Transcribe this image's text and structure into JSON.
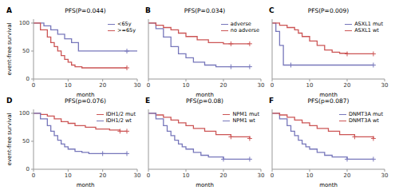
{
  "chart_data": [
    {
      "type": "step",
      "panel_label": "A",
      "title": "PFS(P=0.044)",
      "xlabel": "month",
      "ylabel": "event-free survival",
      "xlim": [
        0,
        30
      ],
      "ylim": [
        0,
        107
      ],
      "xticks": [
        0,
        10,
        20,
        30
      ],
      "yticks": [
        0,
        50,
        100
      ],
      "legend": "upper right",
      "series": [
        {
          "name": "<65y",
          "color": "#7777bb",
          "x": [
            0,
            3,
            5,
            7,
            9,
            11,
            13,
            15,
            27,
            30
          ],
          "values": [
            100,
            95,
            88,
            80,
            72,
            65,
            50,
            50,
            50,
            50
          ],
          "censor_x": [
            27
          ],
          "censor_values": [
            50
          ]
        },
        {
          "name": ">=65y",
          "color": "#cc5555",
          "x": [
            0,
            2,
            4,
            5,
            6,
            7,
            8,
            9,
            10,
            11,
            12,
            14,
            27
          ],
          "values": [
            100,
            88,
            75,
            65,
            58,
            50,
            42,
            35,
            30,
            25,
            22,
            20,
            20
          ],
          "censor_x": [
            27
          ],
          "censor_values": [
            20
          ]
        }
      ]
    },
    {
      "type": "step",
      "panel_label": "B",
      "title": "PFS(P=0.034)",
      "xlabel": "month",
      "xlim": [
        0,
        30
      ],
      "ylim": [
        0,
        107
      ],
      "xticks": [
        0,
        10,
        20,
        30
      ],
      "yticks": [
        0,
        50,
        100
      ],
      "legend": "upper right",
      "tick_labels": "x",
      "series": [
        {
          "name": "adverse",
          "color": "#7777bb",
          "x": [
            0,
            2,
            4,
            6,
            8,
            10,
            12,
            15,
            18,
            22,
            27
          ],
          "values": [
            100,
            90,
            75,
            58,
            45,
            38,
            30,
            25,
            22,
            22,
            22
          ],
          "censor_x": [
            22,
            27
          ],
          "censor_values": [
            22,
            22
          ]
        },
        {
          "name": "no adverse",
          "color": "#cc5555",
          "x": [
            0,
            2,
            4,
            6,
            8,
            10,
            13,
            16,
            20,
            22,
            27
          ],
          "values": [
            100,
            96,
            92,
            88,
            82,
            76,
            70,
            65,
            63,
            63,
            63
          ],
          "censor_x": [
            22,
            27
          ],
          "censor_values": [
            63,
            63
          ]
        }
      ]
    },
    {
      "type": "step",
      "panel_label": "C",
      "title": "PFS(P=0.009)",
      "xlabel": "month",
      "xlim": [
        0,
        30
      ],
      "ylim": [
        0,
        107
      ],
      "xticks": [
        0,
        10,
        20,
        30
      ],
      "yticks": [
        0,
        50,
        100
      ],
      "legend": "upper right",
      "tick_labels": "x",
      "series": [
        {
          "name": "ASXL1 mut",
          "color": "#7777bb",
          "x": [
            0,
            1,
            2,
            3,
            4,
            5,
            27
          ],
          "values": [
            100,
            85,
            60,
            25,
            25,
            25,
            25
          ],
          "censor_x": [
            5,
            27
          ],
          "censor_values": [
            25,
            25
          ]
        },
        {
          "name": "ASXL1 wt",
          "color": "#cc5555",
          "x": [
            0,
            2,
            4,
            6,
            7,
            8,
            10,
            12,
            14,
            16,
            18,
            20,
            27
          ],
          "values": [
            100,
            96,
            92,
            88,
            82,
            76,
            68,
            60,
            52,
            48,
            46,
            45,
            45
          ],
          "censor_x": [
            20,
            27
          ],
          "censor_values": [
            45,
            45
          ]
        }
      ]
    },
    {
      "type": "step",
      "panel_label": "D",
      "title": "PFS(p=0.076)",
      "xlabel": "month",
      "ylabel": "event-free survival",
      "xlim": [
        0,
        30
      ],
      "ylim": [
        0,
        107
      ],
      "xticks": [
        0,
        10,
        20,
        30
      ],
      "yticks": [
        0,
        50,
        100
      ],
      "legend": "upper right",
      "series": [
        {
          "name": "IDH1/2 mut",
          "color": "#cc5555",
          "x": [
            0,
            2,
            4,
            6,
            8,
            10,
            12,
            15,
            18,
            22,
            25,
            27
          ],
          "values": [
            100,
            98,
            95,
            90,
            85,
            82,
            78,
            75,
            72,
            70,
            68,
            68
          ],
          "censor_x": [
            25,
            27
          ],
          "censor_values": [
            68,
            68
          ]
        },
        {
          "name": "IDH1/2 wt",
          "color": "#7777bb",
          "x": [
            0,
            2,
            4,
            5,
            6,
            7,
            8,
            9,
            10,
            12,
            14,
            16,
            20,
            27
          ],
          "values": [
            100,
            90,
            78,
            68,
            60,
            52,
            45,
            40,
            36,
            32,
            30,
            28,
            28,
            28
          ],
          "censor_x": [
            20,
            27
          ],
          "censor_values": [
            28,
            28
          ]
        }
      ]
    },
    {
      "type": "step",
      "panel_label": "E",
      "title": "PFS(p=0.08)",
      "xlabel": "month",
      "xlim": [
        0,
        30
      ],
      "ylim": [
        0,
        107
      ],
      "xticks": [
        0,
        10,
        20,
        30
      ],
      "yticks": [
        0,
        50,
        100
      ],
      "legend": "upper right",
      "tick_labels": "x",
      "series": [
        {
          "name": "NPM1 mut",
          "color": "#cc5555",
          "x": [
            0,
            2,
            4,
            6,
            8,
            10,
            12,
            15,
            18,
            22,
            27
          ],
          "values": [
            100,
            97,
            93,
            88,
            83,
            78,
            73,
            68,
            62,
            58,
            55
          ],
          "censor_x": [
            22,
            27
          ],
          "censor_values": [
            58,
            55
          ]
        },
        {
          "name": "NPM1 wt",
          "color": "#7777bb",
          "x": [
            0,
            2,
            4,
            5,
            6,
            7,
            8,
            9,
            10,
            12,
            14,
            16,
            20,
            27
          ],
          "values": [
            100,
            90,
            78,
            68,
            60,
            52,
            45,
            40,
            36,
            30,
            25,
            22,
            18,
            18
          ],
          "censor_x": [
            20,
            27
          ],
          "censor_values": [
            18,
            18
          ]
        }
      ]
    },
    {
      "type": "step",
      "panel_label": "F",
      "title": "PFS(p=0.087)",
      "xlabel": "month",
      "xlim": [
        0,
        30
      ],
      "ylim": [
        0,
        107
      ],
      "xticks": [
        0,
        10,
        20,
        30
      ],
      "yticks": [
        0,
        50,
        100
      ],
      "legend": "upper right",
      "tick_labels": "x",
      "series": [
        {
          "name": "DNMT3A mut",
          "color": "#7777bb",
          "x": [
            0,
            2,
            4,
            5,
            6,
            7,
            8,
            9,
            10,
            12,
            14,
            16,
            20,
            27
          ],
          "values": [
            100,
            90,
            78,
            68,
            60,
            52,
            45,
            40,
            36,
            30,
            25,
            22,
            18,
            18
          ],
          "censor_x": [
            20,
            27
          ],
          "censor_values": [
            18,
            18
          ]
        },
        {
          "name": "DNMT3A wt",
          "color": "#cc5555",
          "x": [
            0,
            2,
            4,
            6,
            8,
            10,
            12,
            15,
            18,
            22,
            27
          ],
          "values": [
            100,
            97,
            93,
            88,
            83,
            78,
            73,
            68,
            62,
            58,
            55
          ],
          "censor_x": [
            22,
            27
          ],
          "censor_values": [
            58,
            55
          ]
        }
      ]
    }
  ]
}
